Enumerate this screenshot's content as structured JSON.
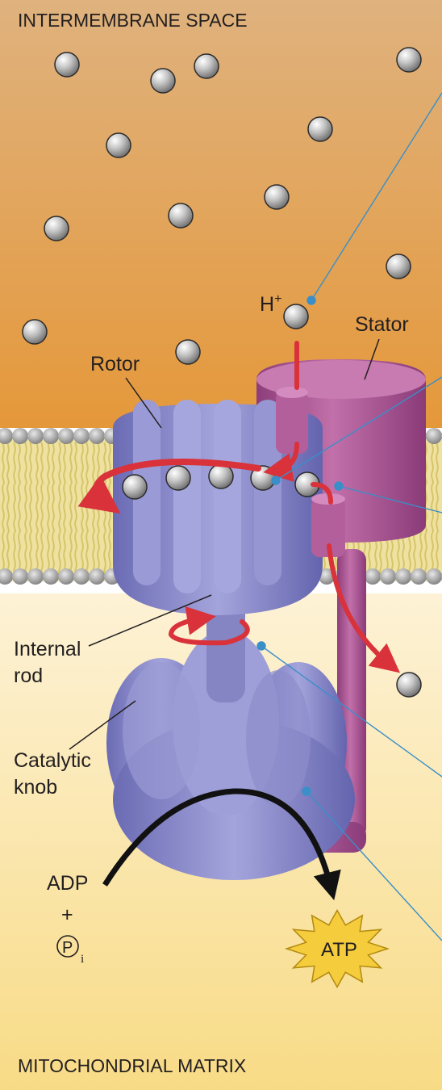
{
  "regions": {
    "top": "INTERMEMBRANE SPACE",
    "bottom": "MITOCHONDRIAL MATRIX"
  },
  "labels": {
    "hplus_base": "H",
    "hplus_sup": "+",
    "stator": "Stator",
    "rotor": "Rotor",
    "internal_rod_1": "Internal",
    "internal_rod_2": "rod",
    "catalytic_knob_1": "Catalytic",
    "catalytic_knob_2": "knob",
    "adp": "ADP",
    "plus": "+",
    "pi_letter": "P",
    "pi_sub": "i",
    "atp": "ATP"
  },
  "colors": {
    "intermembrane_top": "#dfae7a",
    "intermembrane_bottom": "#e59a3c",
    "matrix_top": "#fdf1d2",
    "matrix_bottom": "#f8dc8a",
    "lipid_head": "#8e8e8e",
    "lipid_tail": "#e8d784",
    "synthase": "#8080c8",
    "stator": "#a4508e",
    "proton_arrow": "#d9323a",
    "atp_star": "#f4cc3c",
    "leader_line": "#3a8fc8"
  }
}
